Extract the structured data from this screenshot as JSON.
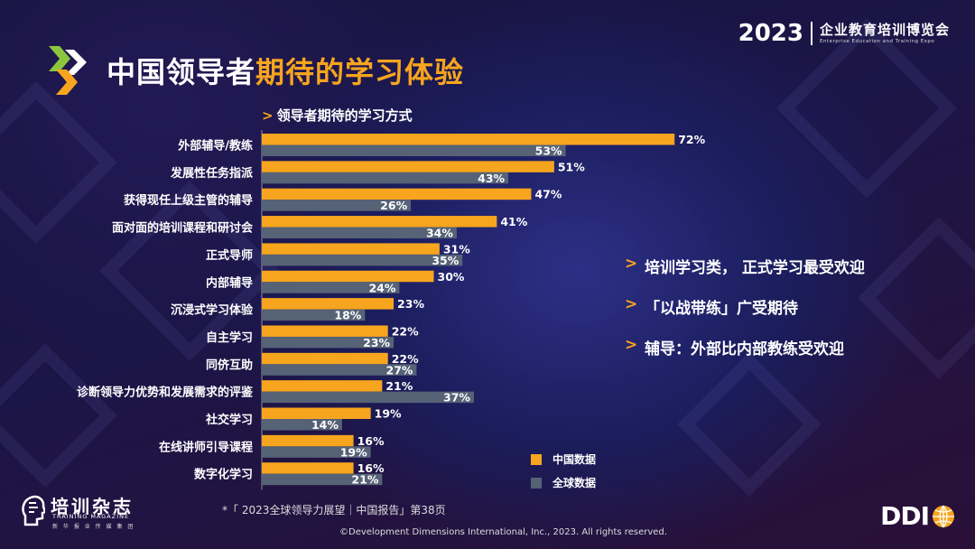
{
  "event": {
    "year": "2023",
    "name_cn": "企业教育培训博览会",
    "name_en": "Enterprise Education and Training Expo"
  },
  "title": {
    "part1": "中国领导者",
    "part2": "期待的学习体验"
  },
  "section_title": "领导者期待的学习方式",
  "colors": {
    "china": "#f7a51e",
    "global": "#566276",
    "accent": "#f7a51e"
  },
  "chart_data": {
    "type": "bar",
    "orientation": "horizontal",
    "categories": [
      "外部辅导/教练",
      "发展性任务指派",
      "获得现任上级主管的辅导",
      "面对面的培训课程和研讨会",
      "正式导师",
      "内部辅导",
      "沉浸式学习体验",
      "自主学习",
      "同侪互助",
      "诊断领导力优势和发展需求的评鉴",
      "社交学习",
      "在线讲师引导课程",
      "数字化学习"
    ],
    "series": [
      {
        "name": "中国数据",
        "values": [
          72,
          51,
          47,
          41,
          31,
          30,
          23,
          22,
          22,
          21,
          19,
          16,
          16
        ]
      },
      {
        "name": "全球数据",
        "values": [
          53,
          43,
          26,
          34,
          35,
          24,
          18,
          23,
          27,
          37,
          14,
          19,
          21
        ]
      }
    ],
    "value_suffix": "%",
    "title": "领导者期待的学习方式",
    "legend_position": "bottom-right"
  },
  "bullets": [
    "培训学习类， 正式学习最受欢迎",
    "「以战带练」广受期待",
    "辅导：外部比内部教练受欢迎"
  ],
  "footnote": "*「 2023全球领导力展望｜中国报告」第38页",
  "copyright": "©Development Dimensions International, Inc., 2023. All rights reserved.",
  "logos": {
    "magazine_cn": "培训杂志",
    "magazine_en": "TRAINING MAGAZINE",
    "magazine_sub": "新 华 报 业 传 媒 集 团",
    "company": "DDI"
  }
}
